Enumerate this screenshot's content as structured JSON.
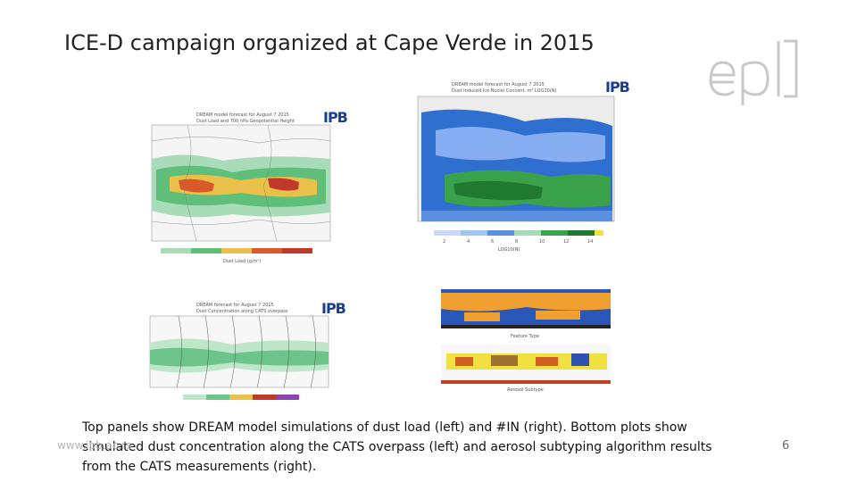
{
  "slide": {
    "title": "ICE-D campaign organized at Cape Verde in 2015",
    "caption": "Top panels show DREAM model simulations of dust load (left) and #IN (right). Bottom plots show simulated dust concentration along the CATS overpass (left) and aerosol subtyping algorithm results from the CATS measurements (right).",
    "footer_url": "www.ipb.ac.rs",
    "page_number": "6"
  },
  "logo": {
    "text": "epl"
  },
  "panels": {
    "top_left": {
      "header1": "DREAM model forecast for August 7 2015",
      "header2": "Dust Load and 700 hPa Geopotential Height",
      "badge": "IPB",
      "colorbar_label": "Dust Load (g/m²)"
    },
    "top_right": {
      "header1": "DREAM model forecast for August 7 2015",
      "header2": "Dust Induced Ice Nuclei Concent. m³ LOG10(N)",
      "badge": "IPB",
      "colorbar_label": "LOG10(N)",
      "colorbar_ticks": [
        "2",
        "4",
        "6",
        "8",
        "10",
        "12",
        "14"
      ]
    },
    "bottom_left": {
      "header1": "DREAM forecast for August 7 2015",
      "header2": "Dust Concentration along CATS overpass",
      "badge": "IPB"
    },
    "bottom_right": {
      "legend1": "Feature Type",
      "legend2": "Aerosol Subtype"
    }
  },
  "colors": {
    "dust_green": "#4caf50",
    "dust_orange": "#e08a2a",
    "dust_red": "#c0392b",
    "in_blue": "#2f6fd0",
    "in_green": "#3aa24a",
    "cats_orange": "#f0a030",
    "cats_blue": "#2a56b8"
  }
}
